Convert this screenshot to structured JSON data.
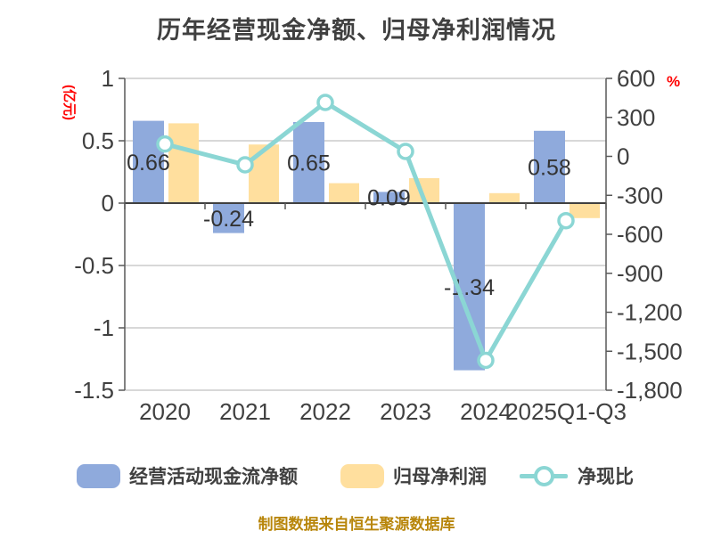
{
  "title": "历年经营现金净额、归母净利润情况",
  "footer": "制图数据来自恒生聚源数据库",
  "colors": {
    "cashflow_bar": "#8FAADC",
    "profit_bar": "#FFDF9E",
    "ratio_line": "#8BD6D4",
    "marker_fill": "#FFFFFF",
    "gridline": "#CBCBCB",
    "axis": "#595959",
    "zero_line": "#404040",
    "text": "#404040",
    "bar_label": "#333333",
    "unit_red": "#FF0000",
    "footer_gold": "#B8860B"
  },
  "chart_data": {
    "type": "combo-bar-line",
    "categories": [
      "2020",
      "2021",
      "2022",
      "2023",
      "2024",
      "2025Q1-Q3"
    ],
    "series": [
      {
        "key": "operating_cashflow",
        "name": "经营活动现金流净额",
        "type": "bar",
        "axis": "left",
        "color": "#8FAADC",
        "values": [
          0.66,
          -0.24,
          0.65,
          0.09,
          -1.34,
          0.58
        ],
        "labels": [
          "0.66",
          "-0.24",
          "0.65",
          "0.09",
          "-1.34",
          "0.58"
        ]
      },
      {
        "key": "net_profit",
        "name": "归母净利润",
        "type": "bar",
        "axis": "left",
        "color": "#FFDF9E",
        "values": [
          0.64,
          0.47,
          0.16,
          0.2,
          0.08,
          -0.12
        ],
        "labels": []
      },
      {
        "key": "ratio",
        "name": "净现比",
        "type": "line",
        "axis": "right",
        "color": "#8BD6D4",
        "values": [
          95,
          -65,
          415,
          38,
          -1570,
          -495
        ],
        "labels": []
      }
    ],
    "left_axis": {
      "unit": "(亿元)",
      "max": 1,
      "min": -1.5,
      "ticks": [
        1,
        0.5,
        0,
        -0.5,
        -1,
        -1.5
      ],
      "labels": [
        "1",
        "0.5",
        "0",
        "-0.5",
        "-1",
        "-1.5"
      ]
    },
    "right_axis": {
      "unit": "%",
      "max": 600,
      "min": -1800,
      "ticks": [
        600,
        300,
        0,
        -300,
        -600,
        -900,
        -1200,
        -1500,
        -1800
      ],
      "labels": [
        "600",
        "300",
        "0",
        "-300",
        "-600",
        "-900",
        "-1,200",
        "-1,500",
        "-1,800"
      ]
    },
    "grid": true,
    "legend_position": "bottom"
  },
  "legend": {
    "items": [
      {
        "label": "经营活动现金流净额",
        "swatch": "bar",
        "color": "#8FAADC"
      },
      {
        "label": "归母净利润",
        "swatch": "bar",
        "color": "#FFDF9E"
      },
      {
        "label": "净现比",
        "swatch": "line-marker",
        "color": "#8BD6D4"
      }
    ]
  }
}
